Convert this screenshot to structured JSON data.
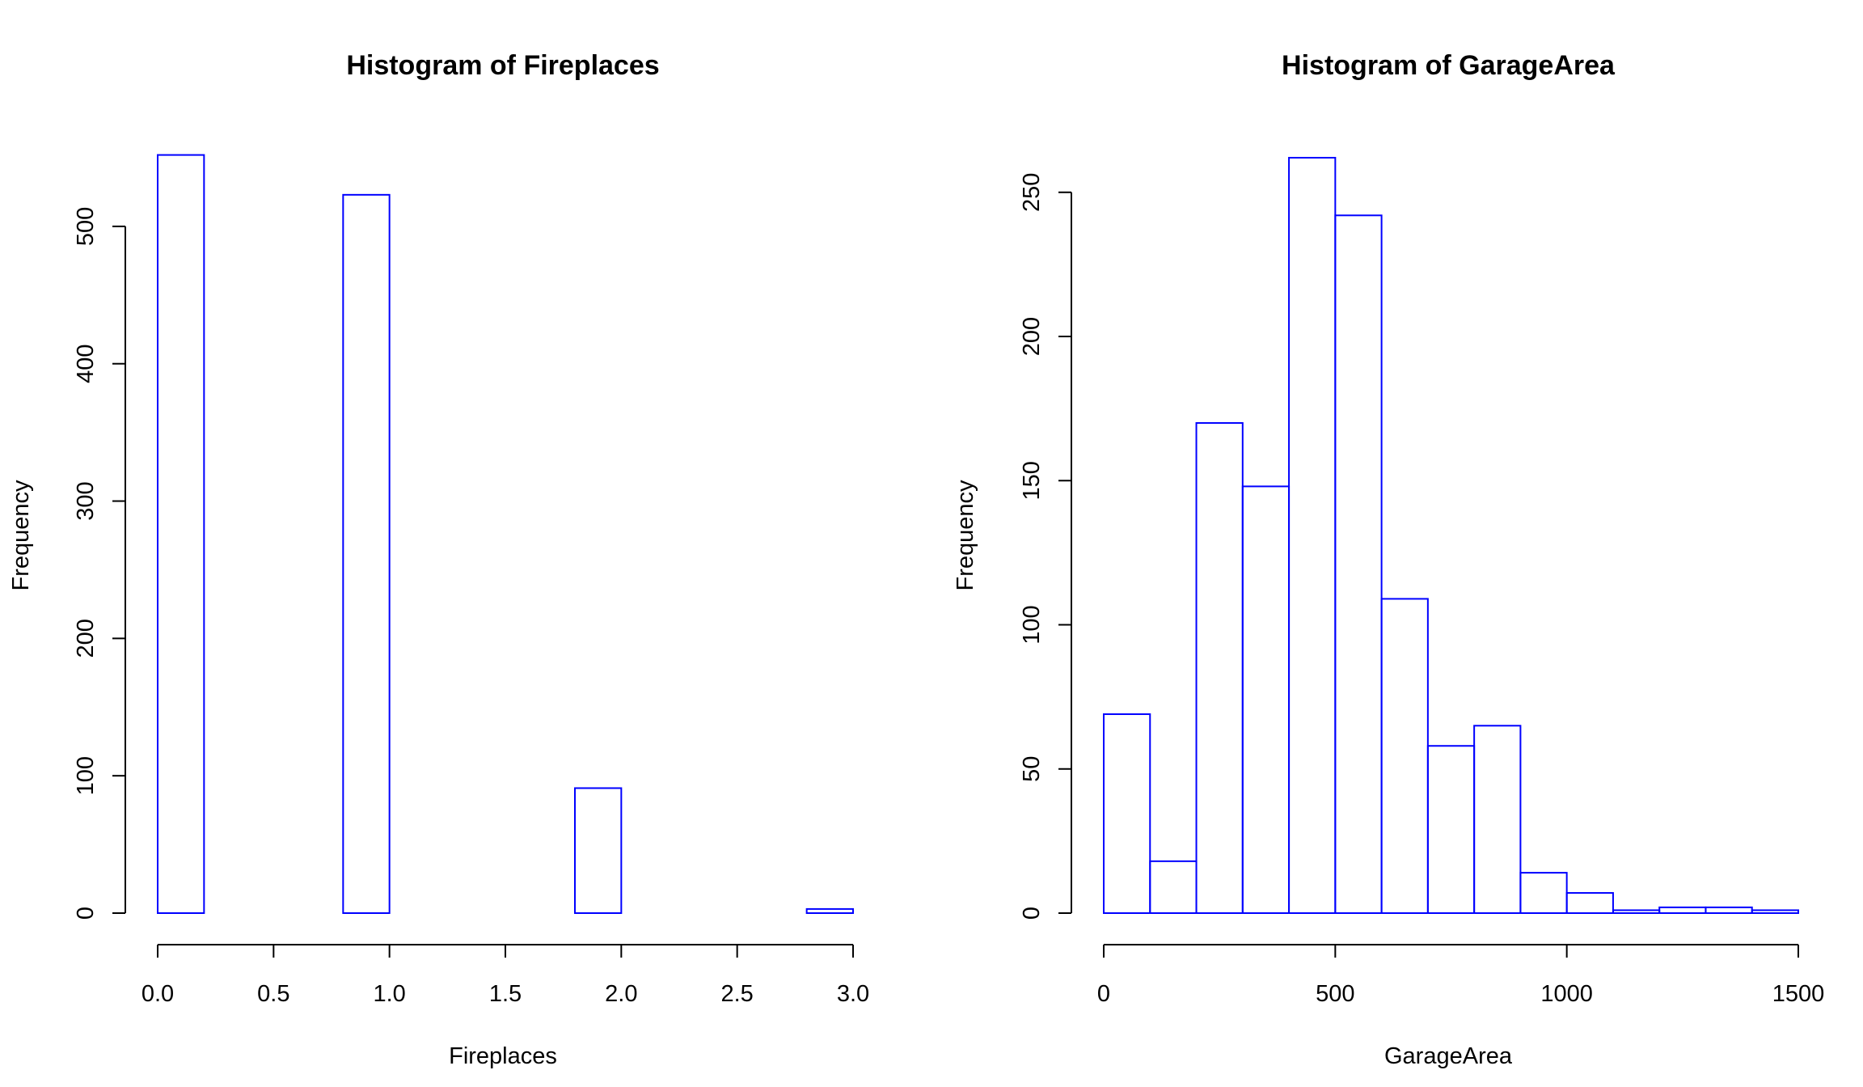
{
  "chart_data": [
    {
      "type": "bar",
      "title": "Histogram of  Fireplaces",
      "xlabel": "Fireplaces",
      "ylabel": "Frequency",
      "bar_color": "#0000ff",
      "xlim": [
        0,
        3
      ],
      "ylim": [
        0,
        550
      ],
      "xticks": [
        0.0,
        0.5,
        1.0,
        1.5,
        2.0,
        2.5,
        3.0
      ],
      "xtick_labels": [
        "0.0",
        "0.5",
        "1.0",
        "1.5",
        "2.0",
        "2.5",
        "3.0"
      ],
      "yticks": [
        0,
        100,
        200,
        300,
        400,
        500
      ],
      "ytick_labels": [
        "0",
        "100",
        "200",
        "300",
        "400",
        "500"
      ],
      "bins": [
        [
          0.0,
          0.2,
          552
        ],
        [
          0.2,
          0.4,
          0
        ],
        [
          0.4,
          0.6,
          0
        ],
        [
          0.6,
          0.8,
          0
        ],
        [
          0.8,
          1.0,
          523
        ],
        [
          1.0,
          1.2,
          0
        ],
        [
          1.2,
          1.4,
          0
        ],
        [
          1.4,
          1.6,
          0
        ],
        [
          1.6,
          1.8,
          0
        ],
        [
          1.8,
          2.0,
          91
        ],
        [
          2.0,
          2.2,
          0
        ],
        [
          2.2,
          2.4,
          0
        ],
        [
          2.4,
          2.6,
          0
        ],
        [
          2.6,
          2.8,
          0
        ],
        [
          2.8,
          3.0,
          3
        ]
      ]
    },
    {
      "type": "bar",
      "title": "Histogram of  GarageArea",
      "xlabel": "GarageArea",
      "ylabel": "Frequency",
      "bar_color": "#0000ff",
      "xlim": [
        0,
        1500
      ],
      "ylim": [
        0,
        262
      ],
      "xticks": [
        0,
        500,
        1000,
        1500
      ],
      "xtick_labels": [
        "0",
        "500",
        "1000",
        "1500"
      ],
      "yticks": [
        0,
        50,
        100,
        150,
        200,
        250
      ],
      "ytick_labels": [
        "0",
        "50",
        "100",
        "150",
        "200",
        "250"
      ],
      "bins": [
        [
          0,
          100,
          69
        ],
        [
          100,
          200,
          18
        ],
        [
          200,
          300,
          170
        ],
        [
          300,
          400,
          148
        ],
        [
          400,
          500,
          262
        ],
        [
          500,
          600,
          242
        ],
        [
          600,
          700,
          109
        ],
        [
          700,
          800,
          58
        ],
        [
          800,
          900,
          65
        ],
        [
          900,
          1000,
          14
        ],
        [
          1000,
          1100,
          7
        ],
        [
          1100,
          1200,
          1
        ],
        [
          1200,
          1300,
          2
        ],
        [
          1300,
          1400,
          2
        ],
        [
          1400,
          1500,
          1
        ]
      ]
    }
  ]
}
